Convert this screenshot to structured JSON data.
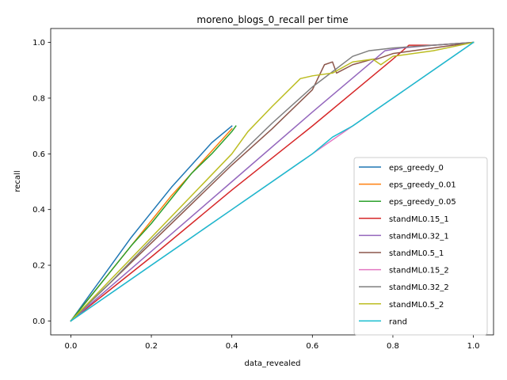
{
  "chart_data": {
    "type": "line",
    "title": "moreno_blogs_0_recall per time",
    "xlabel": "data_revealed",
    "ylabel": "recall",
    "xlim": [
      -0.05,
      1.05
    ],
    "ylim": [
      -0.05,
      1.05
    ],
    "xticks": [
      {
        "value": 0.0,
        "label": "0.0"
      },
      {
        "value": 0.2,
        "label": "0.2"
      },
      {
        "value": 0.4,
        "label": "0.4"
      },
      {
        "value": 0.6,
        "label": "0.6"
      },
      {
        "value": 0.8,
        "label": "0.8"
      },
      {
        "value": 1.0,
        "label": "1.0"
      }
    ],
    "yticks": [
      {
        "value": 0.0,
        "label": "0.0"
      },
      {
        "value": 0.2,
        "label": "0.2"
      },
      {
        "value": 0.4,
        "label": "0.4"
      },
      {
        "value": 0.6,
        "label": "0.6"
      },
      {
        "value": 0.8,
        "label": "0.8"
      },
      {
        "value": 1.0,
        "label": "1.0"
      }
    ],
    "grid": false,
    "legend_position": "lower right",
    "series": [
      {
        "name": "eps_greedy_0",
        "color": "#1f77b4",
        "x": [
          0,
          0.05,
          0.1,
          0.15,
          0.2,
          0.25,
          0.3,
          0.35,
          0.4
        ],
        "y": [
          0,
          0.1,
          0.2,
          0.3,
          0.39,
          0.48,
          0.56,
          0.64,
          0.7
        ]
      },
      {
        "name": "eps_greedy_0.01",
        "color": "#ff7f0e",
        "x": [
          0,
          0.05,
          0.1,
          0.15,
          0.2,
          0.25,
          0.3,
          0.35,
          0.4
        ],
        "y": [
          0,
          0.09,
          0.18,
          0.27,
          0.36,
          0.45,
          0.53,
          0.61,
          0.69
        ]
      },
      {
        "name": "eps_greedy_0.05",
        "color": "#2ca02c",
        "x": [
          0,
          0.05,
          0.1,
          0.15,
          0.2,
          0.25,
          0.3,
          0.35,
          0.4,
          0.41
        ],
        "y": [
          0,
          0.09,
          0.18,
          0.27,
          0.35,
          0.44,
          0.53,
          0.6,
          0.68,
          0.7
        ]
      },
      {
        "name": "standML0.15_1",
        "color": "#d62728",
        "x": [
          0,
          0.2,
          0.4,
          0.6,
          0.8,
          0.84,
          0.9,
          1.0
        ],
        "y": [
          0,
          0.23,
          0.47,
          0.7,
          0.94,
          0.99,
          0.99,
          1.0
        ]
      },
      {
        "name": "standML0.32_1",
        "color": "#9467bd",
        "x": [
          0,
          0.2,
          0.4,
          0.6,
          0.78,
          0.82,
          0.9,
          1.0
        ],
        "y": [
          0,
          0.25,
          0.5,
          0.75,
          0.97,
          0.98,
          0.99,
          1.0
        ]
      },
      {
        "name": "standML0.5_1",
        "color": "#8c564b",
        "x": [
          0,
          0.1,
          0.2,
          0.3,
          0.4,
          0.5,
          0.6,
          0.63,
          0.65,
          0.66,
          0.7,
          0.75,
          0.76,
          0.8,
          0.85,
          0.9,
          1.0
        ],
        "y": [
          0,
          0.14,
          0.28,
          0.42,
          0.56,
          0.69,
          0.83,
          0.92,
          0.93,
          0.89,
          0.92,
          0.94,
          0.94,
          0.96,
          0.97,
          0.98,
          1.0
        ]
      },
      {
        "name": "standML0.15_2",
        "color": "#e377c2",
        "x": [
          0,
          0.1,
          0.2,
          0.3,
          0.4,
          0.5,
          0.6,
          0.7,
          0.8,
          0.9,
          1.0
        ],
        "y": [
          0,
          0.1,
          0.2,
          0.3,
          0.4,
          0.5,
          0.6,
          0.7,
          0.8,
          0.9,
          1.0
        ]
      },
      {
        "name": "standML0.32_2",
        "color": "#7f7f7f",
        "x": [
          0,
          0.1,
          0.2,
          0.3,
          0.4,
          0.5,
          0.6,
          0.7,
          0.74,
          0.8,
          0.9,
          1.0
        ],
        "y": [
          0,
          0.14,
          0.29,
          0.43,
          0.57,
          0.71,
          0.84,
          0.95,
          0.97,
          0.98,
          0.99,
          1.0
        ]
      },
      {
        "name": "standML0.5_2",
        "color": "#bcbd22",
        "x": [
          0,
          0.1,
          0.2,
          0.3,
          0.4,
          0.44,
          0.5,
          0.57,
          0.6,
          0.65,
          0.7,
          0.75,
          0.77,
          0.8,
          0.85,
          0.9,
          1.0
        ],
        "y": [
          0,
          0.15,
          0.3,
          0.45,
          0.6,
          0.68,
          0.77,
          0.87,
          0.88,
          0.89,
          0.93,
          0.94,
          0.92,
          0.95,
          0.96,
          0.97,
          1.0
        ]
      },
      {
        "name": "rand",
        "color": "#17becf",
        "x": [
          0,
          0.1,
          0.2,
          0.3,
          0.4,
          0.5,
          0.6,
          0.65,
          0.7,
          0.8,
          0.9,
          1.0
        ],
        "y": [
          0,
          0.1,
          0.2,
          0.3,
          0.4,
          0.5,
          0.6,
          0.66,
          0.7,
          0.8,
          0.9,
          1.0
        ]
      }
    ]
  }
}
